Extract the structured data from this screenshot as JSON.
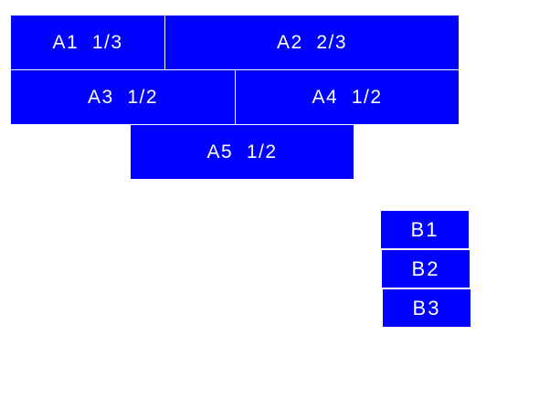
{
  "color": "#0000ff",
  "group_a": [
    {
      "label": "A1  1/3"
    },
    {
      "label": "A2  2/3"
    },
    {
      "label": "A3  1/2"
    },
    {
      "label": "A4  1/2"
    },
    {
      "label": "A5  1/2"
    }
  ],
  "group_b": [
    {
      "label": "B1"
    },
    {
      "label": "B2"
    },
    {
      "label": "B3"
    }
  ]
}
